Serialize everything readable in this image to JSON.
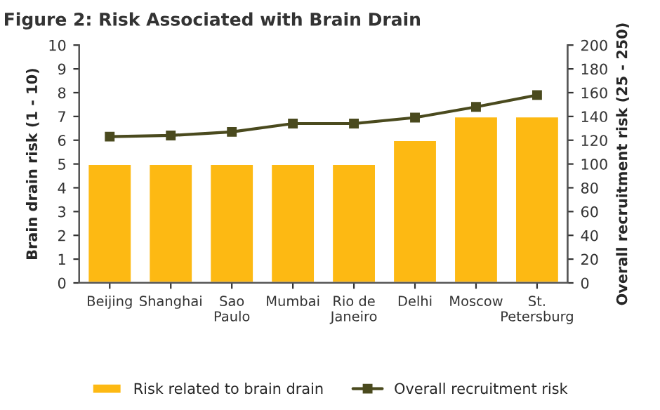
{
  "chart_data": {
    "type": "bar",
    "title": "Figure 2: Risk Associated with Brain Drain",
    "ylabel": "Brain drain risk (1 - 10)",
    "y2label": "Overall recruitment risk (25 - 250)",
    "categories": [
      "Beijing",
      "Shanghai",
      "Sao\nPaulo",
      "Mumbai",
      "Rio de\nJaneiro",
      "Delhi",
      "Moscow",
      "St.\nPetersburg"
    ],
    "series": [
      {
        "name": "Risk related to brain drain",
        "color": "#fdb913",
        "values": [
          5,
          5,
          5,
          5,
          5,
          6,
          7,
          7
        ]
      },
      {
        "name": "Overall recruitment risk",
        "type": "line",
        "axis": "y2",
        "color": "#4a4a1e",
        "marker": "square",
        "values": [
          123,
          124,
          127,
          134,
          134,
          139,
          148,
          158
        ]
      }
    ],
    "ylim": [
      0,
      10
    ],
    "yticks": [
      0,
      1,
      2,
      3,
      4,
      5,
      6,
      7,
      8,
      9,
      10
    ],
    "y2lim": [
      0,
      200
    ],
    "y2ticks": [
      0,
      20,
      40,
      60,
      80,
      100,
      120,
      140,
      160,
      180,
      200
    ],
    "legend": "bottom",
    "grid": false
  }
}
